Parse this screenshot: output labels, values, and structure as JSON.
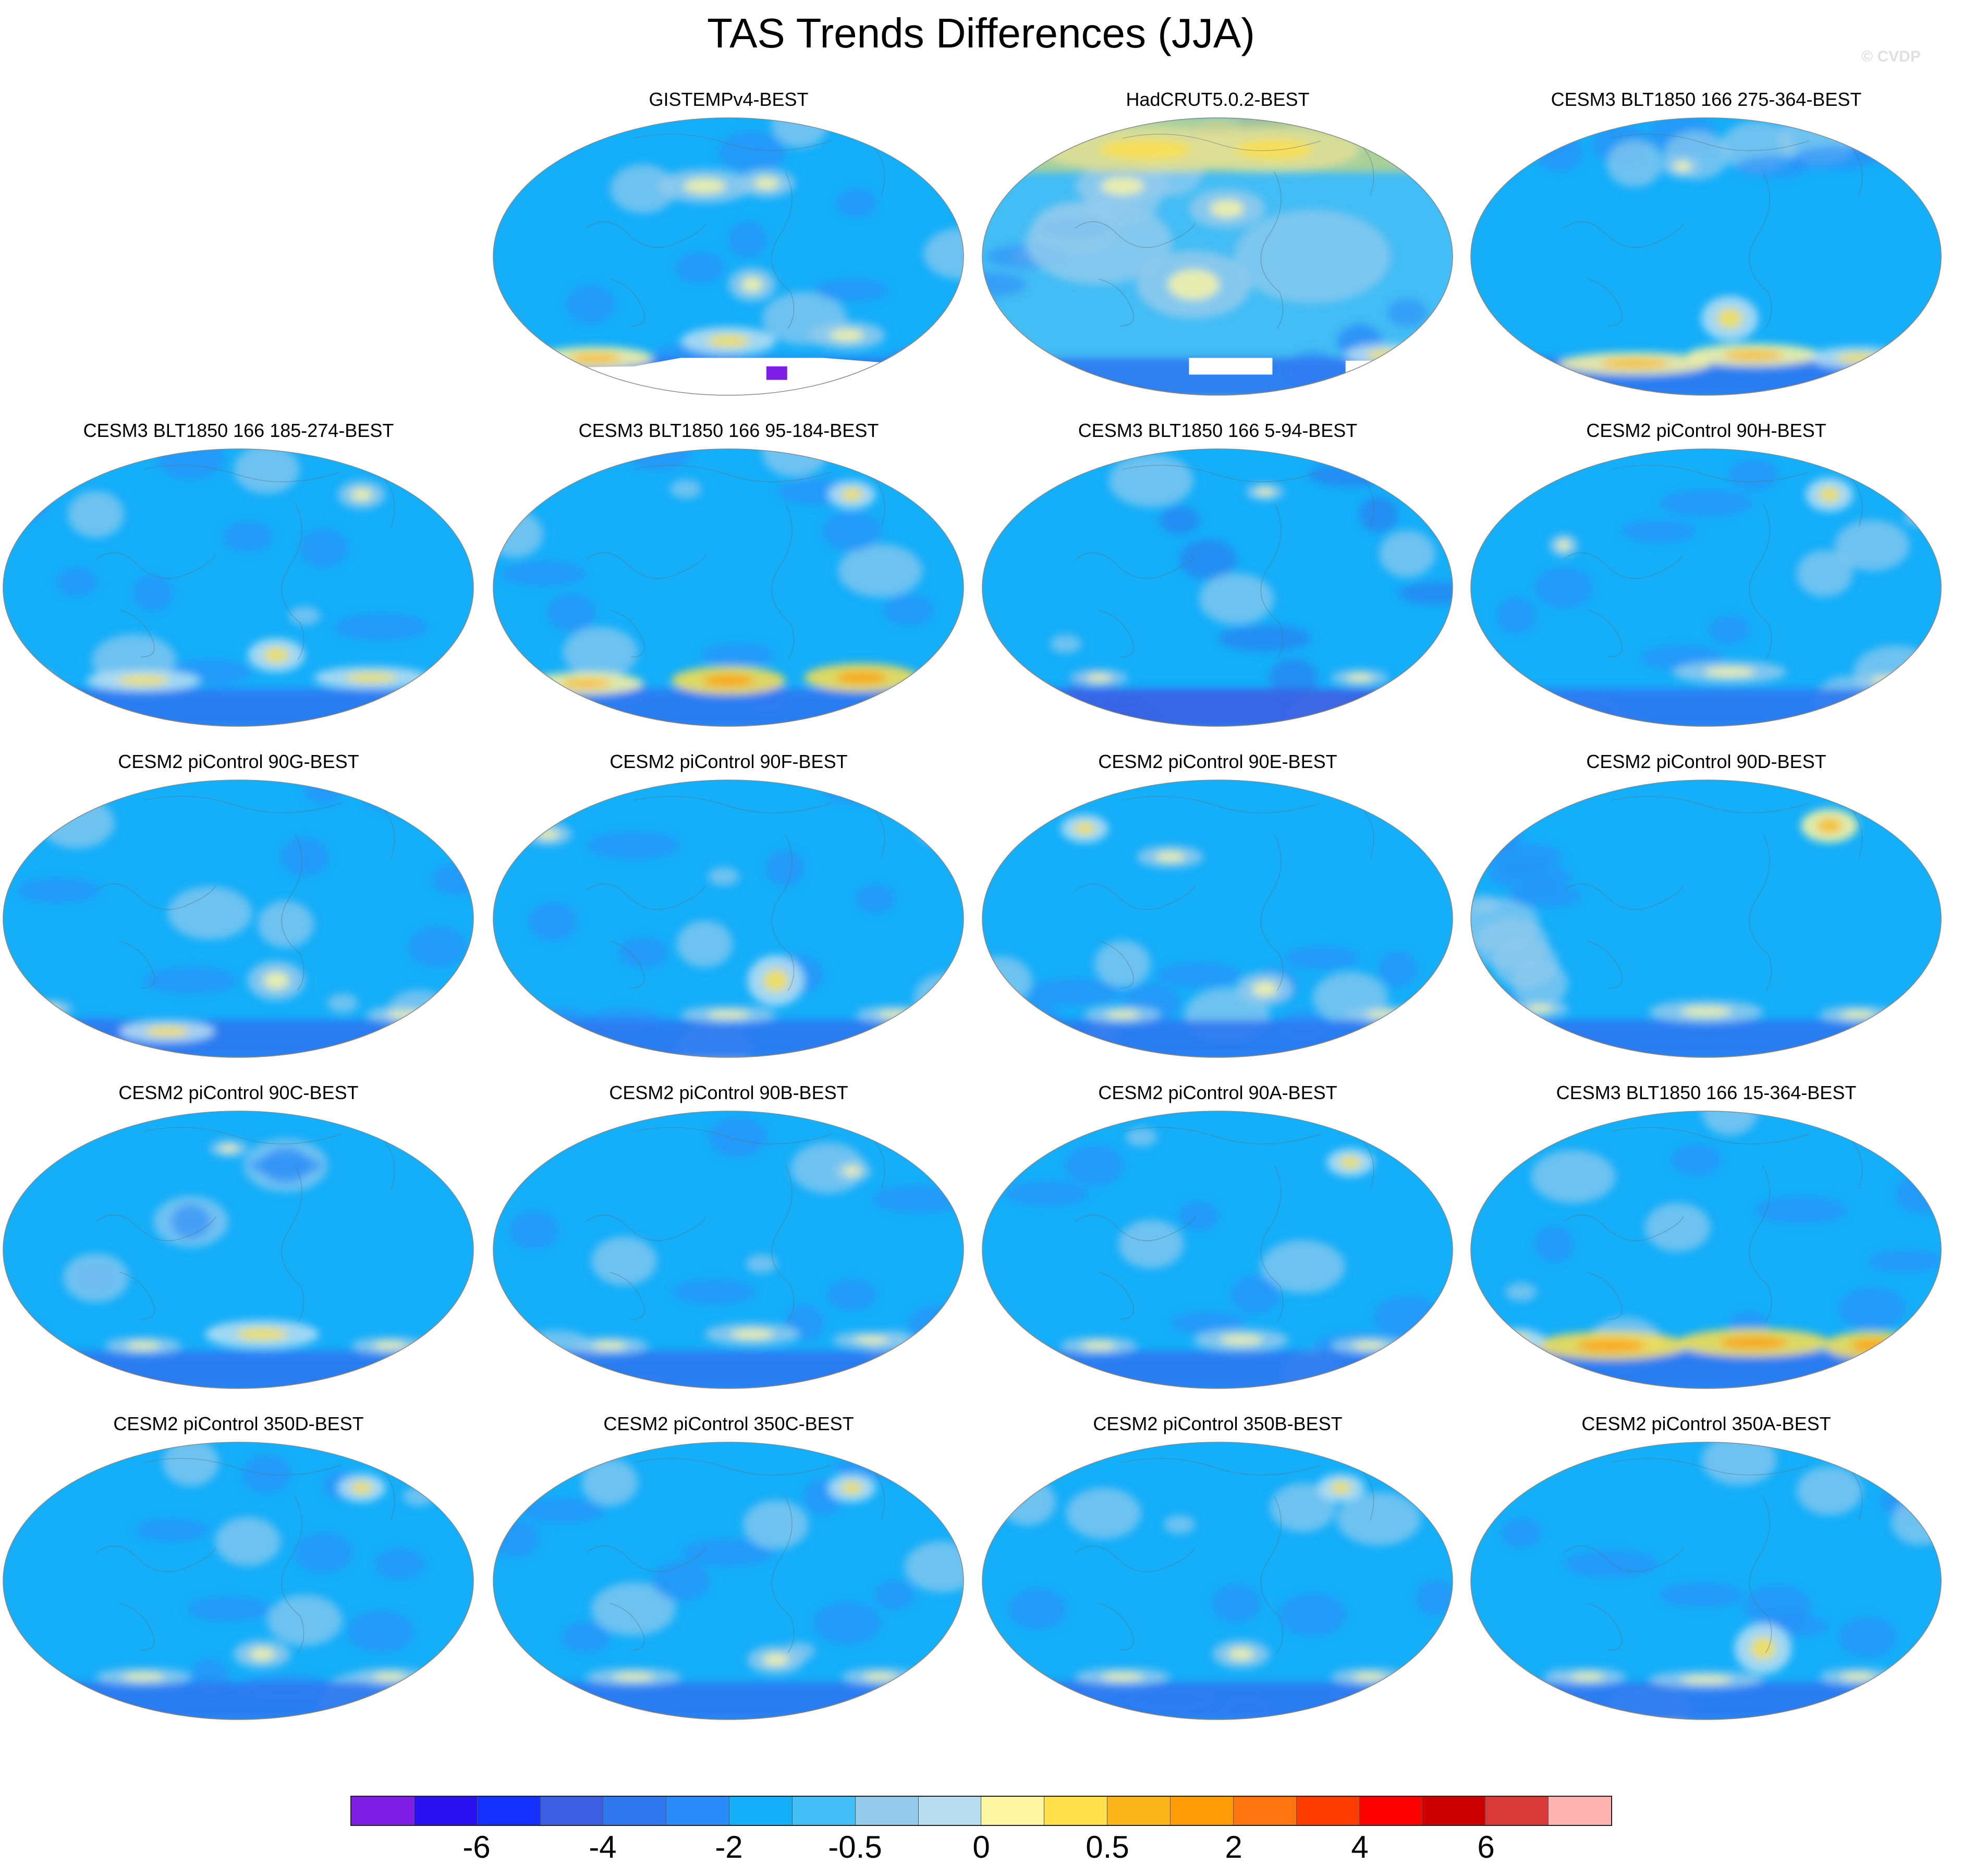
{
  "figure": {
    "title": "TAS Trends Differences (JJA)",
    "watermark": "© CVDP"
  },
  "panels": [
    {
      "label": "GISTEMPv4-BEST",
      "style": "gistemp",
      "hotspots": [
        [
          0.45,
          0.25,
          0.1,
          0.06,
          8
        ],
        [
          0.58,
          0.24,
          0.06,
          0.05,
          8
        ],
        [
          0.22,
          0.86,
          0.12,
          0.04,
          10
        ],
        [
          0.5,
          0.8,
          0.1,
          0.05,
          9
        ],
        [
          0.75,
          0.78,
          0.08,
          0.05,
          8
        ],
        [
          0.55,
          0.6,
          0.05,
          0.06,
          8
        ]
      ]
    },
    {
      "label": "HadCRUT5.0.2-BEST",
      "style": "hadcrut",
      "hotspots": [
        [
          0.35,
          0.12,
          0.22,
          0.08,
          9
        ],
        [
          0.62,
          0.12,
          0.18,
          0.08,
          9
        ],
        [
          0.3,
          0.25,
          0.1,
          0.07,
          8
        ],
        [
          0.52,
          0.33,
          0.08,
          0.07,
          8
        ],
        [
          0.45,
          0.6,
          0.12,
          0.12,
          8
        ],
        [
          0.85,
          0.85,
          0.08,
          0.04,
          9
        ]
      ]
    },
    {
      "label": "CESM3 BLT1850 166 275-364-BEST",
      "style": "model",
      "hotspots": [
        [
          0.55,
          0.72,
          0.06,
          0.08,
          9
        ],
        [
          0.35,
          0.88,
          0.16,
          0.04,
          10
        ],
        [
          0.6,
          0.85,
          0.14,
          0.04,
          10
        ],
        [
          0.82,
          0.86,
          0.1,
          0.04,
          9
        ],
        [
          0.45,
          0.18,
          0.04,
          0.04,
          8
        ]
      ]
    },
    {
      "label": "CESM3 BLT1850 166 185-274-BEST",
      "style": "model",
      "hotspots": [
        [
          0.58,
          0.74,
          0.06,
          0.06,
          9
        ],
        [
          0.3,
          0.83,
          0.12,
          0.04,
          9
        ],
        [
          0.78,
          0.82,
          0.12,
          0.04,
          9
        ],
        [
          0.06,
          0.82,
          0.05,
          0.03,
          8
        ],
        [
          0.76,
          0.17,
          0.05,
          0.05,
          8
        ]
      ]
    },
    {
      "label": "CESM3 BLT1850 166 95-184-BEST",
      "style": "model",
      "hotspots": [
        [
          0.5,
          0.83,
          0.12,
          0.05,
          11
        ],
        [
          0.78,
          0.82,
          0.12,
          0.05,
          11
        ],
        [
          0.2,
          0.84,
          0.12,
          0.04,
          10
        ],
        [
          0.76,
          0.17,
          0.05,
          0.05,
          9
        ]
      ]
    },
    {
      "label": "CESM3 BLT1850 166 5-94-BEST",
      "style": "model-cool",
      "hotspots": [
        [
          0.25,
          0.82,
          0.06,
          0.03,
          8
        ],
        [
          0.8,
          0.82,
          0.06,
          0.03,
          8
        ],
        [
          0.6,
          0.16,
          0.04,
          0.03,
          8
        ]
      ]
    },
    {
      "label": "CESM2 piControl 90H-BEST",
      "style": "model",
      "hotspots": [
        [
          0.55,
          0.8,
          0.12,
          0.04,
          8
        ],
        [
          0.88,
          0.83,
          0.07,
          0.03,
          8
        ],
        [
          0.76,
          0.17,
          0.05,
          0.06,
          9
        ],
        [
          0.2,
          0.35,
          0.03,
          0.04,
          8
        ]
      ]
    },
    {
      "label": "CESM2 piControl 90G-BEST",
      "style": "model",
      "hotspots": [
        [
          0.58,
          0.72,
          0.06,
          0.07,
          8
        ],
        [
          0.35,
          0.9,
          0.1,
          0.04,
          9
        ],
        [
          0.85,
          0.84,
          0.08,
          0.03,
          8
        ],
        [
          0.1,
          0.82,
          0.05,
          0.03,
          8
        ]
      ]
    },
    {
      "label": "CESM2 piControl 90F-BEST",
      "style": "model",
      "hotspots": [
        [
          0.6,
          0.72,
          0.06,
          0.09,
          9
        ],
        [
          0.5,
          0.84,
          0.1,
          0.03,
          8
        ],
        [
          0.85,
          0.84,
          0.08,
          0.03,
          8
        ],
        [
          0.12,
          0.2,
          0.05,
          0.04,
          8
        ]
      ]
    },
    {
      "label": "CESM2 piControl 90E-BEST",
      "style": "model",
      "hotspots": [
        [
          0.22,
          0.18,
          0.05,
          0.05,
          9
        ],
        [
          0.4,
          0.28,
          0.07,
          0.04,
          8
        ],
        [
          0.6,
          0.75,
          0.06,
          0.06,
          8
        ],
        [
          0.85,
          0.84,
          0.08,
          0.03,
          8
        ],
        [
          0.3,
          0.84,
          0.08,
          0.03,
          8
        ]
      ]
    },
    {
      "label": "CESM2 piControl 90D-BEST",
      "style": "model",
      "hotspots": [
        [
          0.76,
          0.17,
          0.06,
          0.06,
          10
        ],
        [
          0.5,
          0.83,
          0.12,
          0.04,
          8
        ],
        [
          0.82,
          0.84,
          0.08,
          0.03,
          8
        ],
        [
          0.15,
          0.82,
          0.06,
          0.03,
          8
        ]
      ]
    },
    {
      "label": "CESM2 piControl 90C-BEST",
      "style": "model",
      "hotspots": [
        [
          0.55,
          0.8,
          0.12,
          0.05,
          9
        ],
        [
          0.3,
          0.84,
          0.08,
          0.03,
          8
        ],
        [
          0.82,
          0.84,
          0.08,
          0.03,
          8
        ],
        [
          0.48,
          0.14,
          0.04,
          0.03,
          8
        ]
      ]
    },
    {
      "label": "CESM2 piControl 90B-BEST",
      "style": "model",
      "hotspots": [
        [
          0.55,
          0.8,
          0.1,
          0.04,
          8
        ],
        [
          0.8,
          0.82,
          0.08,
          0.03,
          8
        ],
        [
          0.25,
          0.84,
          0.08,
          0.03,
          8
        ],
        [
          0.76,
          0.22,
          0.04,
          0.04,
          8
        ]
      ]
    },
    {
      "label": "CESM2 piControl 90A-BEST",
      "style": "model",
      "hotspots": [
        [
          0.78,
          0.19,
          0.05,
          0.05,
          9
        ],
        [
          0.55,
          0.82,
          0.1,
          0.04,
          8
        ],
        [
          0.82,
          0.84,
          0.08,
          0.03,
          8
        ],
        [
          0.25,
          0.84,
          0.08,
          0.03,
          8
        ]
      ]
    },
    {
      "label": "CESM3 BLT1850 166 15-364-BEST",
      "style": "model",
      "hotspots": [
        [
          0.3,
          0.84,
          0.16,
          0.05,
          11
        ],
        [
          0.6,
          0.83,
          0.16,
          0.05,
          11
        ],
        [
          0.85,
          0.84,
          0.1,
          0.05,
          11
        ],
        [
          0.1,
          0.82,
          0.06,
          0.04,
          9
        ]
      ]
    },
    {
      "label": "CESM2 piControl 350D-BEST",
      "style": "model",
      "hotspots": [
        [
          0.76,
          0.17,
          0.05,
          0.05,
          9
        ],
        [
          0.55,
          0.76,
          0.06,
          0.05,
          8
        ],
        [
          0.3,
          0.84,
          0.1,
          0.03,
          8
        ],
        [
          0.82,
          0.84,
          0.08,
          0.03,
          8
        ]
      ]
    },
    {
      "label": "CESM2 piControl 350C-BEST",
      "style": "model",
      "hotspots": [
        [
          0.76,
          0.17,
          0.05,
          0.05,
          9
        ],
        [
          0.6,
          0.78,
          0.06,
          0.05,
          8
        ],
        [
          0.3,
          0.84,
          0.1,
          0.03,
          8
        ],
        [
          0.82,
          0.84,
          0.08,
          0.03,
          8
        ]
      ]
    },
    {
      "label": "CESM2 piControl 350B-BEST",
      "style": "model",
      "hotspots": [
        [
          0.76,
          0.17,
          0.05,
          0.05,
          9
        ],
        [
          0.55,
          0.76,
          0.06,
          0.05,
          8
        ],
        [
          0.3,
          0.84,
          0.1,
          0.03,
          8
        ],
        [
          0.82,
          0.84,
          0.08,
          0.03,
          8
        ]
      ]
    },
    {
      "label": "CESM2 piControl 350A-BEST",
      "style": "model",
      "hotspots": [
        [
          0.62,
          0.74,
          0.06,
          0.09,
          9
        ],
        [
          0.5,
          0.85,
          0.12,
          0.03,
          8
        ],
        [
          0.82,
          0.84,
          0.08,
          0.03,
          8
        ],
        [
          0.25,
          0.84,
          0.08,
          0.03,
          8
        ]
      ]
    }
  ],
  "colorbar": {
    "colors": [
      "#7f1fe6",
      "#2a12f0",
      "#1431ff",
      "#3c5ee3",
      "#2f78ef",
      "#2b8cf9",
      "#14aef9",
      "#43bdf5",
      "#93caec",
      "#b9def2",
      "#fff6a1",
      "#ffe04a",
      "#fdb51c",
      "#ff9d08",
      "#ff7310",
      "#ff3c00",
      "#ff0000",
      "#cc0000",
      "#d83a3a",
      "#ffb3b3"
    ],
    "labels": [
      "-6",
      "-4",
      "-2",
      "-0.5",
      "0",
      "0.5",
      "2",
      "4",
      "6"
    ],
    "label_boundaries": [
      2,
      4,
      6,
      8,
      10,
      12,
      14,
      16,
      18
    ]
  }
}
